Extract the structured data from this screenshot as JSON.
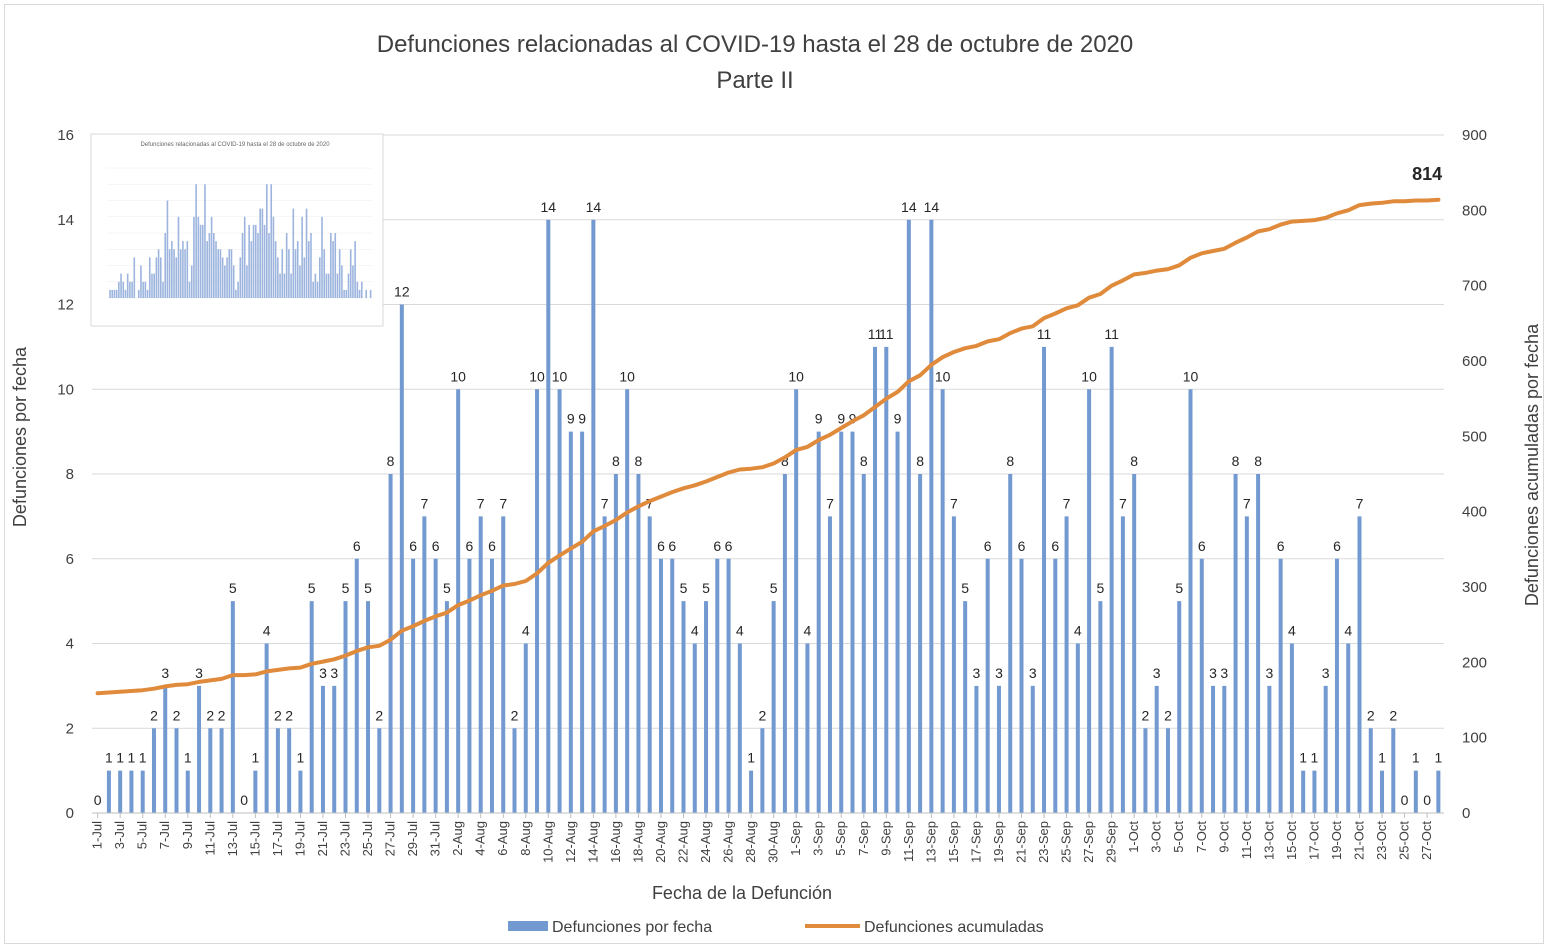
{
  "chart_data": {
    "type": "bar",
    "title": "Defunciones relacionadas al COVID-19 hasta el 28 de octubre de 2020",
    "subtitle": "Parte II",
    "xlabel": "Fecha de la Defunción",
    "ylabel": "Defunciones por fecha",
    "y2label": "Defunciones acumuladas por fecha",
    "ylim": [
      0,
      16
    ],
    "y_ticks": [
      0,
      2,
      4,
      6,
      8,
      10,
      12,
      14,
      16
    ],
    "y2lim": [
      0,
      900
    ],
    "y2_ticks": [
      0,
      100,
      200,
      300,
      400,
      500,
      600,
      700,
      800,
      900
    ],
    "grid": "horizontal",
    "legend_position": "bottom",
    "categories": [
      "1-Jul",
      "2-Jul",
      "3-Jul",
      "4-Jul",
      "5-Jul",
      "6-Jul",
      "7-Jul",
      "8-Jul",
      "9-Jul",
      "10-Jul",
      "11-Jul",
      "12-Jul",
      "13-Jul",
      "14-Jul",
      "15-Jul",
      "16-Jul",
      "17-Jul",
      "18-Jul",
      "19-Jul",
      "20-Jul",
      "21-Jul",
      "22-Jul",
      "23-Jul",
      "24-Jul",
      "25-Jul",
      "26-Jul",
      "27-Jul",
      "28-Jul",
      "29-Jul",
      "30-Jul",
      "31-Jul",
      "1-Aug",
      "2-Aug",
      "3-Aug",
      "4-Aug",
      "5-Aug",
      "6-Aug",
      "7-Aug",
      "8-Aug",
      "9-Aug",
      "10-Aug",
      "11-Aug",
      "12-Aug",
      "13-Aug",
      "14-Aug",
      "15-Aug",
      "16-Aug",
      "17-Aug",
      "18-Aug",
      "19-Aug",
      "20-Aug",
      "21-Aug",
      "22-Aug",
      "23-Aug",
      "24-Aug",
      "25-Aug",
      "26-Aug",
      "27-Aug",
      "28-Aug",
      "29-Aug",
      "30-Aug",
      "31-Aug",
      "1-Sep",
      "2-Sep",
      "3-Sep",
      "4-Sep",
      "5-Sep",
      "6-Sep",
      "7-Sep",
      "8-Sep",
      "9-Sep",
      "10-Sep",
      "11-Sep",
      "12-Sep",
      "13-Sep",
      "14-Sep",
      "15-Sep",
      "16-Sep",
      "17-Sep",
      "18-Sep",
      "19-Sep",
      "20-Sep",
      "21-Sep",
      "22-Sep",
      "23-Sep",
      "24-Sep",
      "25-Sep",
      "26-Sep",
      "27-Sep",
      "28-Sep",
      "29-Sep",
      "30-Sep",
      "1-Oct",
      "2-Oct",
      "3-Oct",
      "4-Oct",
      "5-Oct",
      "6-Oct",
      "7-Oct",
      "8-Oct",
      "9-Oct",
      "10-Oct",
      "11-Oct",
      "12-Oct",
      "13-Oct",
      "14-Oct",
      "15-Oct",
      "16-Oct",
      "17-Oct",
      "18-Oct",
      "19-Oct",
      "20-Oct",
      "21-Oct",
      "22-Oct",
      "23-Oct",
      "24-Oct",
      "25-Oct",
      "26-Oct",
      "27-Oct",
      "28-Oct"
    ],
    "x_tick_labels": [
      "1-Jul",
      "3-Jul",
      "5-Jul",
      "7-Jul",
      "9-Jul",
      "11-Jul",
      "13-Jul",
      "15-Jul",
      "17-Jul",
      "19-Jul",
      "21-Jul",
      "23-Jul",
      "25-Jul",
      "27-Jul",
      "29-Jul",
      "31-Jul",
      "2-Aug",
      "4-Aug",
      "6-Aug",
      "8-Aug",
      "10-Aug",
      "12-Aug",
      "14-Aug",
      "16-Aug",
      "18-Aug",
      "20-Aug",
      "22-Aug",
      "24-Aug",
      "26-Aug",
      "28-Aug",
      "30-Aug",
      "1-Sep",
      "3-Sep",
      "5-Sep",
      "7-Sep",
      "9-Sep",
      "11-Sep",
      "13-Sep",
      "15-Sep",
      "17-Sep",
      "19-Sep",
      "21-Sep",
      "23-Sep",
      "25-Sep",
      "27-Sep",
      "29-Sep",
      "1-Oct",
      "3-Oct",
      "5-Oct",
      "7-Oct",
      "9-Oct",
      "11-Oct",
      "13-Oct",
      "15-Oct",
      "17-Oct",
      "19-Oct",
      "21-Oct",
      "23-Oct",
      "25-Oct",
      "27-Oct"
    ],
    "series": [
      {
        "name": "Defunciones por fecha",
        "type": "bar",
        "axis": "left",
        "color": "#7399d1",
        "values": [
          0,
          1,
          1,
          1,
          1,
          2,
          3,
          2,
          1,
          3,
          2,
          2,
          5,
          0,
          1,
          4,
          2,
          2,
          1,
          5,
          3,
          3,
          5,
          6,
          5,
          2,
          8,
          12,
          6,
          7,
          6,
          5,
          10,
          6,
          7,
          6,
          7,
          2,
          4,
          10,
          14,
          10,
          9,
          9,
          14,
          7,
          8,
          10,
          8,
          7,
          6,
          6,
          5,
          4,
          5,
          6,
          6,
          4,
          1,
          2,
          5,
          8,
          10,
          4,
          9,
          7,
          9,
          9,
          8,
          11,
          11,
          9,
          14,
          8,
          14,
          10,
          7,
          5,
          3,
          6,
          3,
          8,
          6,
          3,
          11,
          6,
          7,
          4,
          10,
          5,
          11,
          7,
          8,
          2,
          3,
          2,
          5,
          10,
          6,
          3,
          3,
          8,
          7,
          8,
          3,
          6,
          4,
          1,
          1,
          3,
          6,
          4,
          7,
          2,
          1,
          2,
          0,
          1,
          0,
          1
        ]
      },
      {
        "name": "Defunciones acumuladas",
        "type": "line",
        "axis": "right",
        "color": "#e08a3c",
        "values": [
          159,
          160,
          161,
          162,
          163,
          165,
          168,
          170,
          171,
          174,
          176,
          178,
          183,
          183,
          184,
          188,
          190,
          192,
          193,
          198,
          201,
          204,
          209,
          215,
          220,
          222,
          230,
          242,
          248,
          255,
          261,
          266,
          276,
          282,
          289,
          295,
          302,
          304,
          308,
          318,
          332,
          342,
          351,
          360,
          374,
          381,
          389,
          399,
          407,
          414,
          420,
          426,
          431,
          435,
          440,
          446,
          452,
          456,
          457,
          459,
          464,
          472,
          482,
          486,
          495,
          502,
          511,
          520,
          528,
          539,
          550,
          559,
          573,
          581,
          595,
          605,
          612,
          617,
          620,
          626,
          629,
          637,
          643,
          646,
          657,
          663,
          670,
          674,
          684,
          689,
          700,
          707,
          715,
          717,
          720,
          722,
          727,
          737,
          743,
          746,
          749,
          757,
          764,
          772,
          775,
          781,
          785,
          786,
          787,
          790,
          796,
          800,
          807,
          809,
          810,
          812,
          812,
          813,
          813,
          814
        ]
      }
    ],
    "annotations": [
      {
        "text": "814",
        "target": "last point of Defunciones acumuladas"
      }
    ]
  },
  "thumbnail": {
    "title": "Defunciones relacionadas al COVID-19 hasta el 28 de octubre de 2020"
  }
}
